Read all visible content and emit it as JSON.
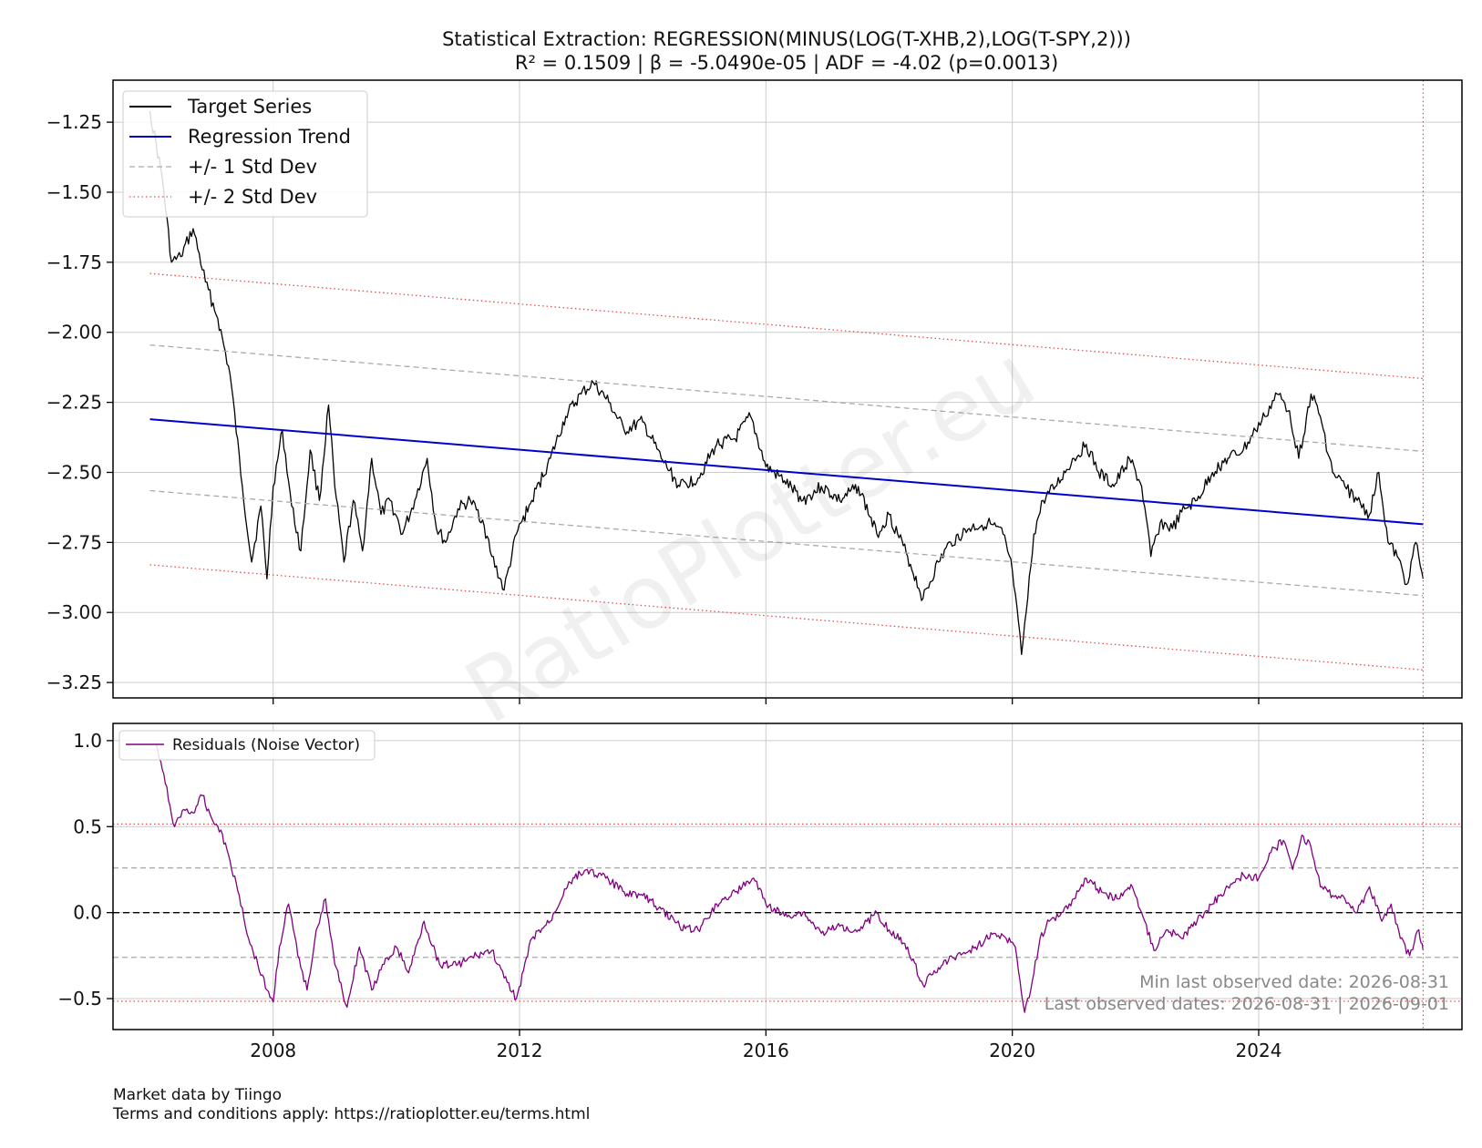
{
  "title_line1": "Statistical Extraction: REGRESSION(MINUS(LOG(T-XHB,2),LOG(T-SPY,2)))",
  "title_line2": "R² = 0.1509  |  β = -5.0490e-05  |  ADF = -4.02 (p=0.0013)",
  "watermark": "RatioPlotter.eu",
  "footer_line1": "Market data by Tiingo",
  "footer_line2": "Terms and conditions apply: https://ratioplotter.eu/terms.html",
  "annotation_min_date": "Min last observed date: 2026-08-31",
  "annotation_last_dates": "Last observed dates: 2026-08-31 | 2026-09-01",
  "colors": {
    "target": "#000000",
    "trend": "#0000cc",
    "std1": "#aaaaaa",
    "std2": "#e05050",
    "residual": "#800080",
    "lastdate": "#e05050"
  },
  "chart_data": [
    {
      "type": "line",
      "panel": "main",
      "xlim": [
        2005.4,
        2027.3
      ],
      "ylim": [
        -3.305,
        -1.1
      ],
      "yticks": [
        -1.25,
        -1.5,
        -1.75,
        -2.0,
        -2.25,
        -2.5,
        -2.75,
        -3.0,
        -3.25
      ],
      "ytick_labels": [
        "−1.25",
        "−1.50",
        "−1.75",
        "−2.00",
        "−2.25",
        "−2.50",
        "−2.75",
        "−3.00",
        "−3.25"
      ],
      "xticks": [
        2008,
        2012,
        2016,
        2020,
        2024
      ],
      "grid": true,
      "legend_position": "upper-left",
      "legend": [
        "Target Series",
        "Regression Trend",
        "+/- 1 Std Dev",
        "+/- 2 Std Dev"
      ],
      "last_observed_x": 2026.67,
      "series": [
        {
          "name": "Target Series",
          "x": [
            2006.0,
            2006.2,
            2006.35,
            2006.5,
            2006.7,
            2006.9,
            2007.1,
            2007.3,
            2007.5,
            2007.65,
            2007.8,
            2007.9,
            2008.0,
            2008.15,
            2008.3,
            2008.45,
            2008.6,
            2008.75,
            2008.9,
            2009.0,
            2009.15,
            2009.3,
            2009.45,
            2009.6,
            2009.75,
            2009.9,
            2010.1,
            2010.3,
            2010.5,
            2010.65,
            2010.8,
            2011.0,
            2011.2,
            2011.4,
            2011.55,
            2011.75,
            2011.95,
            2012.2,
            2012.5,
            2012.75,
            2013.0,
            2013.2,
            2013.45,
            2013.7,
            2014.0,
            2014.3,
            2014.6,
            2014.9,
            2015.2,
            2015.5,
            2015.75,
            2016.0,
            2016.3,
            2016.6,
            2016.9,
            2017.2,
            2017.5,
            2017.8,
            2018.0,
            2018.3,
            2018.55,
            2018.8,
            2019.0,
            2019.3,
            2019.6,
            2019.85,
            2020.0,
            2020.15,
            2020.25,
            2020.35,
            2020.5,
            2020.7,
            2021.0,
            2021.2,
            2021.4,
            2021.65,
            2021.9,
            2022.1,
            2022.25,
            2022.4,
            2022.6,
            2022.8,
            2023.0,
            2023.25,
            2023.5,
            2023.75,
            2023.95,
            2024.1,
            2024.3,
            2024.5,
            2024.65,
            2024.85,
            2025.0,
            2025.2,
            2025.4,
            2025.6,
            2025.8,
            2025.95,
            2026.1,
            2026.25,
            2026.4,
            2026.55,
            2026.67
          ],
          "y": [
            -1.21,
            -1.45,
            -1.75,
            -1.73,
            -1.63,
            -1.82,
            -1.95,
            -2.15,
            -2.55,
            -2.82,
            -2.62,
            -2.88,
            -2.55,
            -2.35,
            -2.62,
            -2.78,
            -2.42,
            -2.6,
            -2.26,
            -2.55,
            -2.82,
            -2.6,
            -2.78,
            -2.45,
            -2.65,
            -2.6,
            -2.72,
            -2.6,
            -2.45,
            -2.7,
            -2.75,
            -2.63,
            -2.6,
            -2.67,
            -2.8,
            -2.92,
            -2.72,
            -2.6,
            -2.45,
            -2.3,
            -2.22,
            -2.18,
            -2.25,
            -2.35,
            -2.32,
            -2.45,
            -2.55,
            -2.52,
            -2.4,
            -2.38,
            -2.3,
            -2.48,
            -2.53,
            -2.6,
            -2.55,
            -2.6,
            -2.55,
            -2.72,
            -2.65,
            -2.8,
            -2.95,
            -2.82,
            -2.75,
            -2.7,
            -2.68,
            -2.72,
            -2.85,
            -3.15,
            -2.95,
            -2.72,
            -2.6,
            -2.55,
            -2.45,
            -2.4,
            -2.5,
            -2.55,
            -2.45,
            -2.55,
            -2.8,
            -2.68,
            -2.7,
            -2.63,
            -2.6,
            -2.5,
            -2.45,
            -2.42,
            -2.35,
            -2.3,
            -2.22,
            -2.28,
            -2.45,
            -2.22,
            -2.3,
            -2.5,
            -2.55,
            -2.6,
            -2.65,
            -2.5,
            -2.75,
            -2.8,
            -2.9,
            -2.75,
            -2.88
          ]
        },
        {
          "name": "Regression Trend",
          "x": [
            2006.0,
            2026.67
          ],
          "y": [
            -2.31,
            -2.685
          ]
        },
        {
          "name": "+/- 1 Std Dev",
          "x": [
            2006.0,
            2026.67
          ],
          "y": [
            -2.045,
            -2.425
          ]
        },
        {
          "name": "+/- 1 Std Dev",
          "x": [
            2006.0,
            2026.67
          ],
          "y": [
            -2.565,
            -2.94
          ]
        },
        {
          "name": "+/- 2 Std Dev",
          "x": [
            2006.0,
            2026.67
          ],
          "y": [
            -1.79,
            -2.165
          ]
        },
        {
          "name": "+/- 2 Std Dev",
          "x": [
            2006.0,
            2026.67
          ],
          "y": [
            -2.83,
            -3.205
          ]
        }
      ]
    },
    {
      "type": "line",
      "panel": "residual",
      "xlim": [
        2005.4,
        2027.3
      ],
      "ylim": [
        -0.68,
        1.1
      ],
      "yticks": [
        1.0,
        0.5,
        0.0,
        -0.5
      ],
      "ytick_labels": [
        "1.0",
        "0.5",
        "0.0",
        "−0.5"
      ],
      "xticks": [
        2008,
        2012,
        2016,
        2020,
        2024
      ],
      "xtick_labels": [
        "2008",
        "2012",
        "2016",
        "2020",
        "2024"
      ],
      "grid": true,
      "legend_position": "upper-left",
      "legend": [
        "Residuals (Noise Vector)"
      ],
      "hlines": [
        {
          "y": 0.0,
          "style": "dashed-black"
        },
        {
          "y": 0.26,
          "style": "dashed-gray"
        },
        {
          "y": -0.26,
          "style": "dashed-gray"
        },
        {
          "y": 0.515,
          "style": "dotted-red"
        },
        {
          "y": -0.515,
          "style": "dotted-red"
        }
      ],
      "last_observed_x": 2026.67,
      "series": [
        {
          "name": "Residuals (Noise Vector)",
          "x": [
            2006.1,
            2006.25,
            2006.4,
            2006.55,
            2006.7,
            2006.85,
            2007.0,
            2007.15,
            2007.3,
            2007.45,
            2007.6,
            2007.75,
            2007.9,
            2008.0,
            2008.1,
            2008.25,
            2008.4,
            2008.55,
            2008.7,
            2008.85,
            2009.0,
            2009.2,
            2009.4,
            2009.6,
            2009.8,
            2010.0,
            2010.2,
            2010.45,
            2010.7,
            2011.0,
            2011.3,
            2011.55,
            2011.75,
            2011.95,
            2012.2,
            2012.5,
            2012.8,
            2013.1,
            2013.4,
            2013.7,
            2014.0,
            2014.3,
            2014.6,
            2014.9,
            2015.2,
            2015.5,
            2015.8,
            2016.0,
            2016.3,
            2016.6,
            2016.9,
            2017.2,
            2017.5,
            2017.8,
            2018.0,
            2018.3,
            2018.55,
            2018.8,
            2019.1,
            2019.4,
            2019.7,
            2019.9,
            2020.05,
            2020.2,
            2020.3,
            2020.45,
            2020.6,
            2020.8,
            2021.0,
            2021.2,
            2021.45,
            2021.7,
            2021.95,
            2022.15,
            2022.3,
            2022.5,
            2022.75,
            2023.0,
            2023.25,
            2023.5,
            2023.75,
            2024.0,
            2024.2,
            2024.4,
            2024.55,
            2024.7,
            2024.85,
            2025.0,
            2025.2,
            2025.4,
            2025.6,
            2025.8,
            2026.0,
            2026.15,
            2026.3,
            2026.45,
            2026.6,
            2026.67
          ],
          "y": [
            0.98,
            0.75,
            0.5,
            0.6,
            0.58,
            0.68,
            0.55,
            0.48,
            0.3,
            0.1,
            -0.15,
            -0.3,
            -0.45,
            -0.52,
            -0.2,
            0.05,
            -0.25,
            -0.45,
            -0.1,
            0.08,
            -0.3,
            -0.55,
            -0.2,
            -0.45,
            -0.3,
            -0.2,
            -0.35,
            -0.05,
            -0.3,
            -0.3,
            -0.25,
            -0.22,
            -0.38,
            -0.5,
            -0.15,
            -0.05,
            0.18,
            0.25,
            0.2,
            0.12,
            0.1,
            0.02,
            -0.08,
            -0.1,
            0.05,
            0.12,
            0.2,
            0.05,
            -0.02,
            0.0,
            -0.12,
            -0.08,
            -0.1,
            0.0,
            -0.1,
            -0.2,
            -0.42,
            -0.32,
            -0.25,
            -0.2,
            -0.12,
            -0.15,
            -0.2,
            -0.58,
            -0.45,
            -0.15,
            -0.05,
            0.0,
            0.08,
            0.2,
            0.12,
            0.08,
            0.15,
            -0.05,
            -0.22,
            -0.1,
            -0.15,
            -0.05,
            0.05,
            0.15,
            0.22,
            0.2,
            0.35,
            0.42,
            0.25,
            0.45,
            0.38,
            0.15,
            0.1,
            0.08,
            0.0,
            0.15,
            -0.05,
            0.05,
            -0.15,
            -0.25,
            -0.1,
            -0.22
          ]
        }
      ]
    }
  ]
}
